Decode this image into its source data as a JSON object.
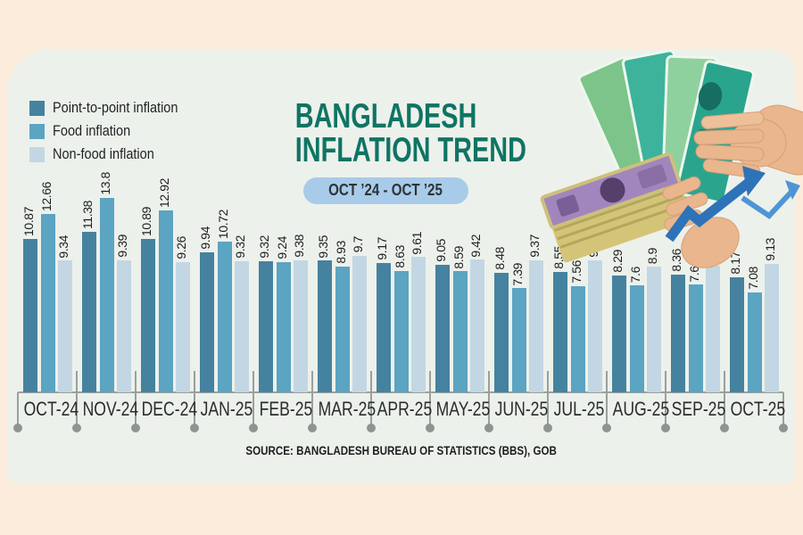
{
  "page": {
    "background_color": "#fcecdb",
    "card_background_color": "#edf1eb"
  },
  "header": {
    "title_line1": "BANGLADESH",
    "title_line2": "INFLATION TREND",
    "title_color": "#0f7464",
    "period_badge": "OCT ’24 - OCT ’25",
    "badge_background": "#a8cbe9"
  },
  "illustration": {
    "alt": "hands holding bangladeshi taka banknotes with rising trend arrows",
    "arrow_color_dark": "#2e73b8",
    "arrow_color_light": "#4f95d6"
  },
  "chart_data": {
    "type": "bar",
    "title": "BANGLADESH INFLATION TREND",
    "subtitle": "OCT ’24 - OCT ’25",
    "categories": [
      "OCT-24",
      "NOV-24",
      "DEC-24",
      "JAN-25",
      "FEB-25",
      "MAR-25",
      "APR-25",
      "MAY-25",
      "JUN-25",
      "JUL-25",
      "AUG-25",
      "SEP-25",
      "OCT-25"
    ],
    "series": [
      {
        "name": "Point-to-point inflation",
        "color": "#45829f",
        "values": [
          10.87,
          11.38,
          10.89,
          9.94,
          9.32,
          9.35,
          9.17,
          9.05,
          8.48,
          8.55,
          8.29,
          8.36,
          8.17
        ]
      },
      {
        "name": "Food inflation",
        "color": "#5ba4c2",
        "values": [
          12.66,
          13.8,
          12.92,
          10.72,
          9.24,
          8.93,
          8.63,
          8.59,
          7.39,
          7.56,
          7.6,
          7.64,
          7.08
        ]
      },
      {
        "name": "Non-food inflation",
        "color": "#c2d7e3",
        "values": [
          9.34,
          9.39,
          9.26,
          9.32,
          9.38,
          9.7,
          9.61,
          9.42,
          9.37,
          9.38,
          8.9,
          8.98,
          9.13
        ]
      }
    ],
    "ylim": [
      0,
      14
    ],
    "grid": false,
    "legend_position": "top-left",
    "value_labels": "rotated-90-above-bars"
  },
  "footer": {
    "source": "SOURCE: BANGLADESH BUREAU OF STATISTICS (BBS), GOB"
  }
}
